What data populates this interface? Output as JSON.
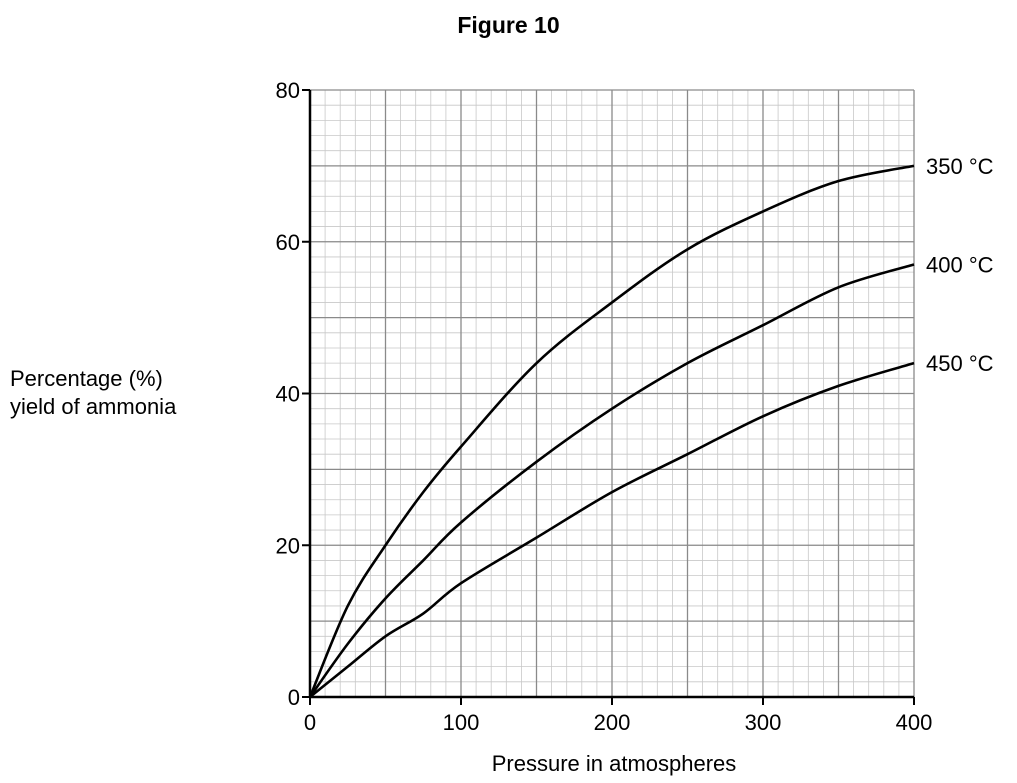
{
  "figure_title": "Figure 10",
  "chart_data": {
    "type": "line",
    "title": "Figure 10",
    "xlabel": "Pressure in atmospheres",
    "ylabel_lines": [
      "Percentage (%)",
      "yield of ammonia"
    ],
    "xlim": [
      0,
      400
    ],
    "ylim": [
      0,
      80
    ],
    "xticks": [
      0,
      100,
      200,
      300,
      400
    ],
    "yticks": [
      0,
      20,
      40,
      60,
      80
    ],
    "grid": true,
    "x": [
      0,
      25,
      50,
      75,
      100,
      150,
      200,
      250,
      300,
      350,
      400
    ],
    "series": [
      {
        "name": "350 °C",
        "values": [
          0,
          12,
          20,
          27,
          33,
          44,
          52,
          59,
          64,
          68,
          70
        ]
      },
      {
        "name": "400 °C",
        "values": [
          0,
          7,
          13,
          18,
          23,
          31,
          38,
          44,
          49,
          54,
          57
        ]
      },
      {
        "name": "450 °C",
        "values": [
          0,
          4,
          8,
          11,
          15,
          21,
          27,
          32,
          37,
          41,
          44
        ]
      }
    ]
  }
}
